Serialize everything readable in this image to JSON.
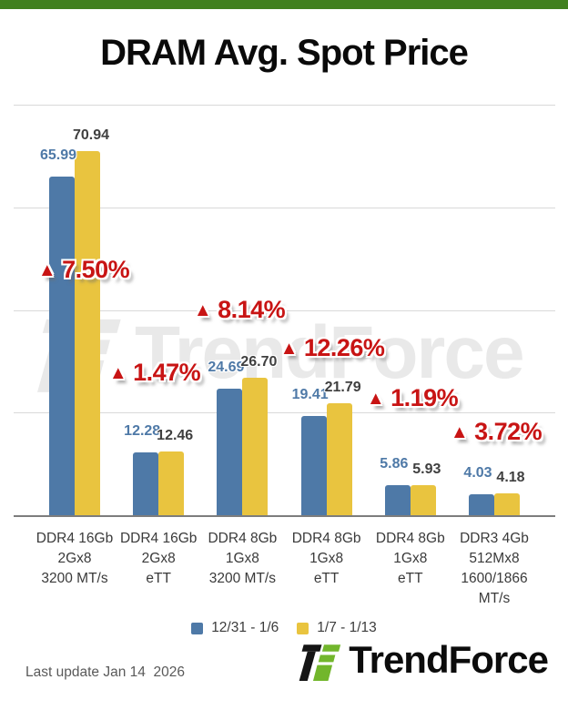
{
  "header": {
    "title": "DRAM Avg. Spot Price"
  },
  "chart_data": {
    "type": "bar",
    "title": "DRAM Avg. Spot Price",
    "categories": [
      [
        "DDR4 16Gb",
        "2Gx8",
        "3200 MT/s"
      ],
      [
        "DDR4 16Gb",
        "2Gx8",
        "eTT"
      ],
      [
        "DDR4 8Gb",
        "1Gx8",
        "3200 MT/s"
      ],
      [
        "DDR4 8Gb",
        "1Gx8",
        "eTT"
      ],
      [
        "DDR4 8Gb",
        "1Gx8",
        "eTT"
      ],
      [
        "DDR3 4Gb",
        "512Mx8",
        "1600/1866",
        "MT/s"
      ]
    ],
    "series": [
      {
        "name": "12/31 - 1/6",
        "color": "#4e79a7",
        "label_color": "#4e79a7",
        "values": [
          65.99,
          12.28,
          24.69,
          19.41,
          5.86,
          4.03
        ]
      },
      {
        "name": "1/7 - 1/13",
        "color": "#e9c43f",
        "label_color": "#3f3f3f",
        "values": [
          70.94,
          12.46,
          26.7,
          21.79,
          5.93,
          4.18
        ]
      }
    ],
    "change_labels": [
      "7.50%",
      "1.47%",
      "8.14%",
      "12.26%",
      "1.19%",
      "3.72%"
    ],
    "change_icon": "▲",
    "change_color": "#c81414",
    "ylim": [
      0,
      80
    ],
    "gridline_values": [
      20,
      40,
      60,
      80
    ],
    "grid": true,
    "legend_position": "bottom"
  },
  "watermark": {
    "text": "TrendForce",
    "icon": "trendforce-mark"
  },
  "footer": {
    "last_update": "Last update Jan 14  2026",
    "brand": "TrendForce"
  },
  "colors": {
    "accent_bar_green": "#41801f",
    "logo_green": "#72b62c",
    "series_blue": "#4e79a7",
    "series_yellow": "#e9c43f",
    "change_red": "#c81414"
  }
}
